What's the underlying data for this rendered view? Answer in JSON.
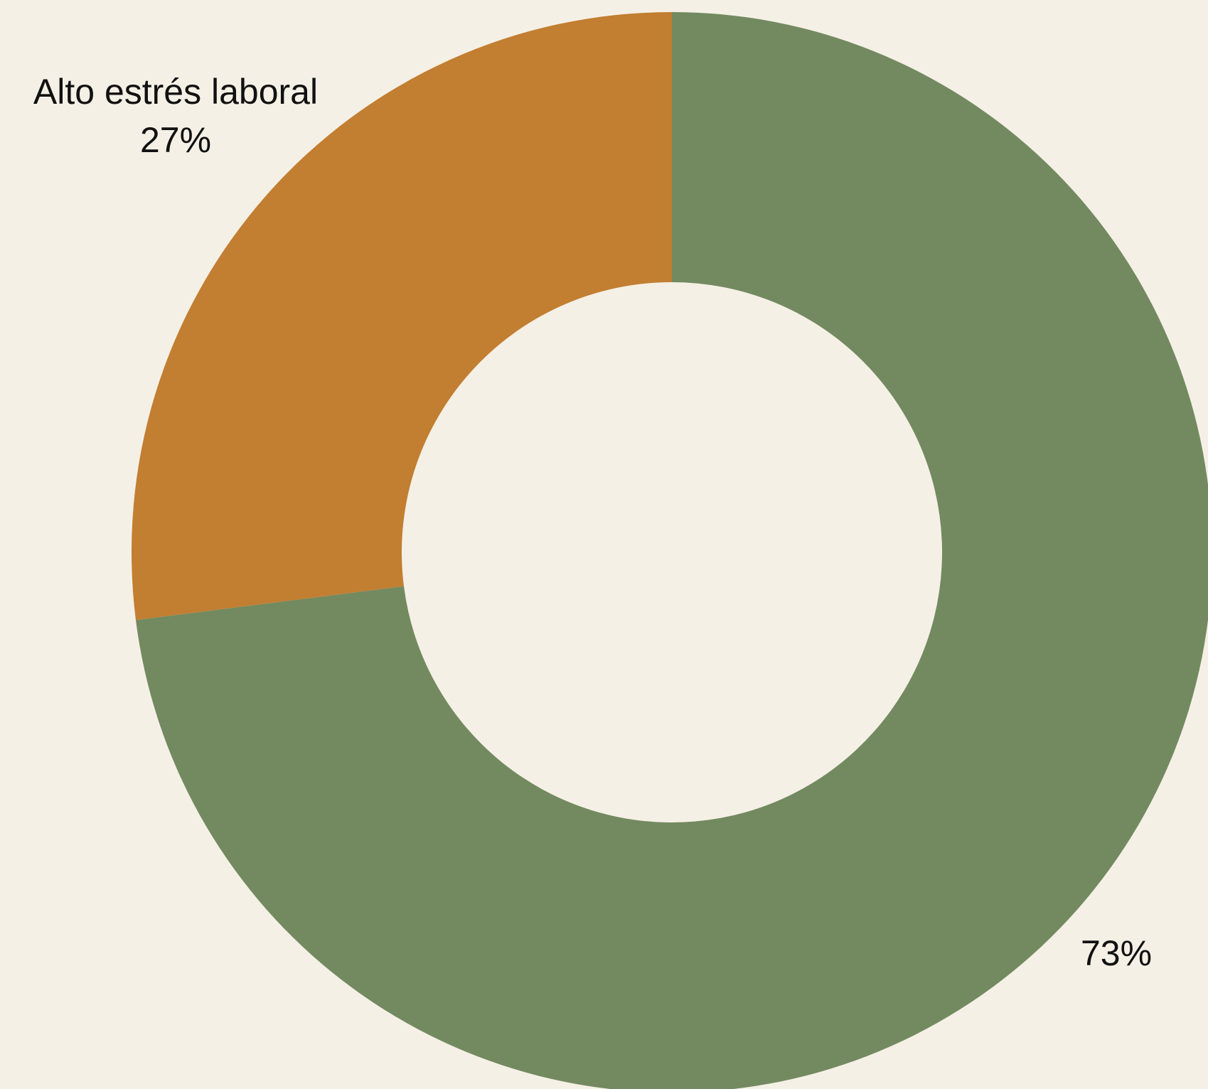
{
  "chart_data": {
    "type": "pie",
    "variant": "donut",
    "title": "",
    "slices": [
      {
        "label": "Alto estrés laboral",
        "value": 27,
        "percent_label": "27%",
        "color": "#C27E31"
      },
      {
        "label": "",
        "value": 73,
        "percent_label": "73%",
        "color": "#738A60"
      }
    ],
    "start_angle": "12 o'clock",
    "direction": "counter-clockwise for first slice",
    "legend": "none"
  },
  "colors": {
    "background": "#F5F0E5",
    "text": "#111111"
  }
}
